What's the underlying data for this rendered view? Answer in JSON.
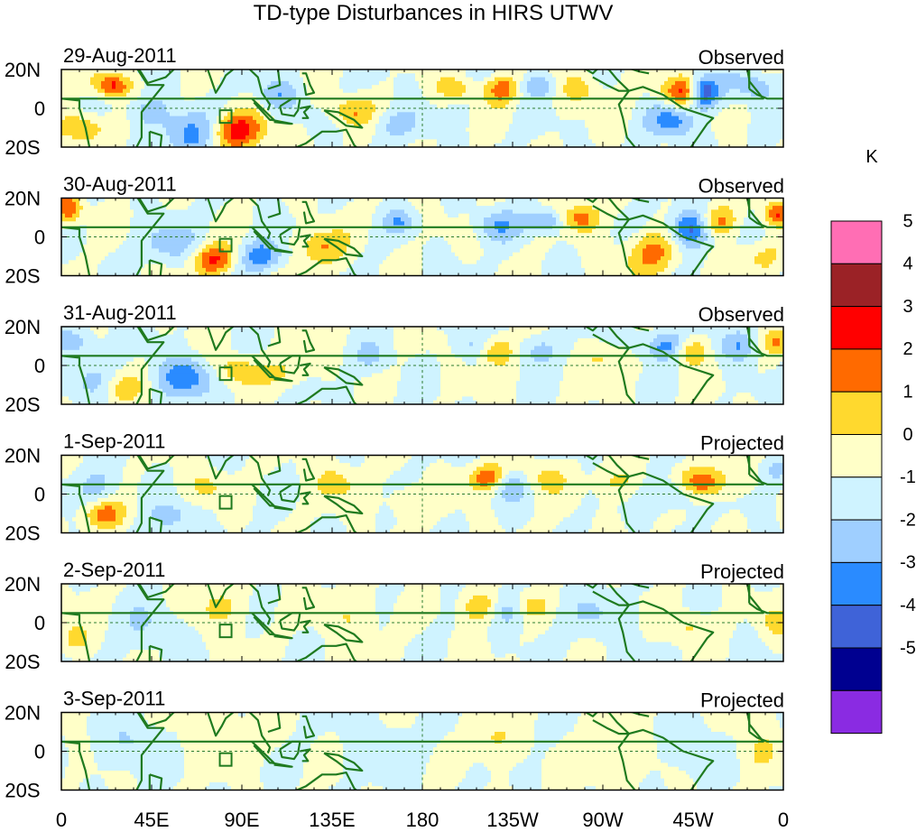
{
  "figure": {
    "title": "TD-type Disturbances in HIRS UTWV"
  },
  "axes": {
    "lat_ticks": [
      "20N",
      "0",
      "20S"
    ],
    "lon_ticks": [
      "0",
      "45E",
      "90E",
      "135E",
      "180",
      "135W",
      "90W",
      "45W",
      "0"
    ]
  },
  "panels": [
    {
      "date": "29-Aug-2011",
      "status": "Observed"
    },
    {
      "date": "30-Aug-2011",
      "status": "Observed"
    },
    {
      "date": "31-Aug-2011",
      "status": "Observed"
    },
    {
      "date": "1-Sep-2011",
      "status": "Projected"
    },
    {
      "date": "2-Sep-2011",
      "status": "Projected"
    },
    {
      "date": "3-Sep-2011",
      "status": "Projected"
    }
  ],
  "colorbar": {
    "unit": "K",
    "labels": [
      "5",
      "4",
      "3",
      "2",
      "1",
      "0",
      "-1",
      "-2",
      "-3",
      "-4",
      "-5"
    ],
    "colors": [
      "#ff6eb4",
      "#9b2226",
      "#ff0000",
      "#ff6a00",
      "#ffd92e",
      "#ffffc8",
      "#cff3ff",
      "#9fcfff",
      "#2a8bff",
      "#3f63d8",
      "#000090",
      "#8a2be2"
    ]
  },
  "map_colors": {
    "coastline": "#1f7a1f",
    "equator_line": "#2e7d32",
    "dateline": "#2e7d32"
  }
}
